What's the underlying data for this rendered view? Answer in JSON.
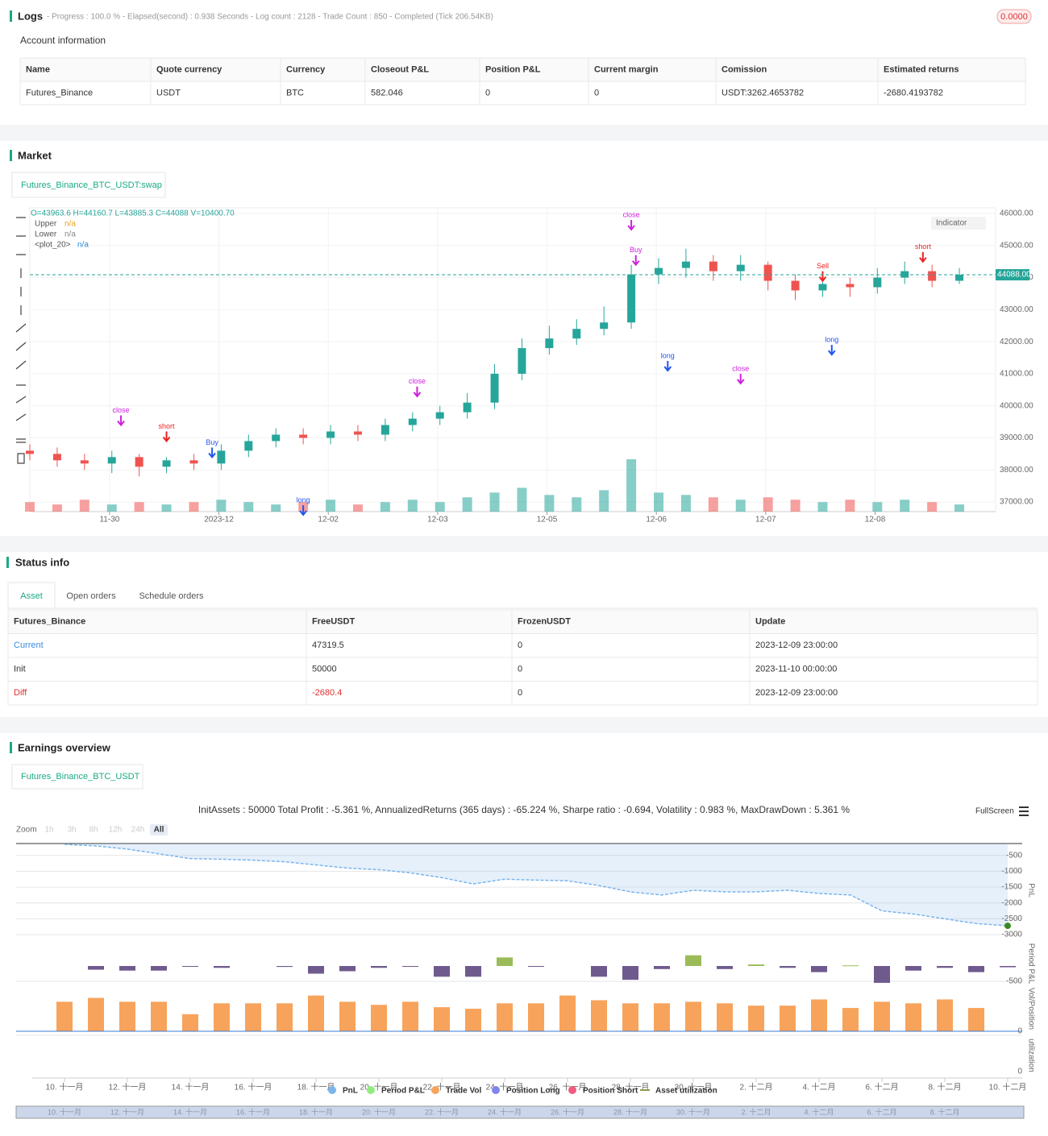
{
  "logs": {
    "title": "Logs",
    "progress": "- Progress : 100.0 % - Elapsed(second) : 0.938 Seconds - Log count : 2128 - Trade Count : 850 - Completed (Tick 206.54KB)",
    "badge": "0.0000"
  },
  "account": {
    "title": "Account information",
    "columns": [
      "Name",
      "Quote currency",
      "Currency",
      "Closeout P&L",
      "Position P&L",
      "Current margin",
      "Comission",
      "Estimated returns"
    ],
    "rows": [
      [
        "Futures_Binance",
        "USDT",
        "BTC",
        "582.046",
        "0",
        "0",
        "USDT:3262.4653782",
        "-2680.4193782"
      ]
    ]
  },
  "market": {
    "title": "Market",
    "tab": "Futures_Binance_BTC_USDT:swap",
    "ohlc": "O=43963.6 H=44160.7 L=43885.3 C=44088 V=10400.70",
    "indicators": [
      {
        "name": "Upper",
        "value": "n/a",
        "color": "#f0a020"
      },
      {
        "name": "Lower",
        "value": "n/a",
        "color": "#888888"
      },
      {
        "name": "<plot_20>",
        "value": "n/a",
        "color": "#2b8cd8"
      }
    ],
    "indicator_button": "Indicator",
    "last_price": {
      "value": 44088,
      "label": "44088.00"
    },
    "chart": {
      "type": "candlestick",
      "x": [
        0,
        6,
        12,
        18,
        24,
        30,
        36,
        42,
        48,
        54,
        60,
        66,
        72,
        78,
        84,
        90,
        96,
        102,
        108,
        114,
        120,
        126,
        132,
        138,
        144,
        150,
        156,
        162,
        168,
        174,
        180,
        186,
        192,
        198,
        204
      ],
      "open": [
        38600,
        38500,
        38300,
        38200,
        38400,
        38100,
        38300,
        38200,
        38600,
        38900,
        39100,
        39000,
        39200,
        39100,
        39400,
        39600,
        39800,
        40100,
        41000,
        41800,
        42100,
        42400,
        42600,
        44100,
        44300,
        44500,
        44200,
        44400,
        43900,
        43600,
        43800,
        43700,
        44000,
        44200,
        43900
      ],
      "high": [
        38800,
        38700,
        38500,
        38600,
        38500,
        38400,
        38500,
        38800,
        39100,
        39300,
        39300,
        39400,
        39400,
        39600,
        39800,
        40000,
        40400,
        41300,
        42100,
        42500,
        42700,
        43100,
        44400,
        44600,
        44900,
        44700,
        44700,
        44500,
        44100,
        44000,
        44000,
        44300,
        44500,
        44400,
        44300
      ],
      "low": [
        38300,
        38100,
        38000,
        37900,
        37800,
        37900,
        38000,
        38000,
        38400,
        38700,
        38800,
        38800,
        38900,
        38900,
        39200,
        39400,
        39600,
        39900,
        40800,
        41600,
        41900,
        42200,
        42400,
        43800,
        44000,
        43900,
        43900,
        43600,
        43300,
        43400,
        43400,
        43500,
        43800,
        43700,
        43800
      ],
      "close": [
        38500,
        38300,
        38200,
        38400,
        38100,
        38300,
        38200,
        38600,
        38900,
        39100,
        39000,
        39200,
        39100,
        39400,
        39600,
        39800,
        40100,
        41000,
        41800,
        42100,
        42400,
        42600,
        44100,
        44300,
        44500,
        44200,
        44400,
        43900,
        43600,
        43800,
        43700,
        44000,
        44200,
        43900,
        44088
      ],
      "volume": [
        4000,
        3000,
        5000,
        3000,
        4000,
        3000,
        4000,
        5000,
        4000,
        3000,
        4000,
        5000,
        3000,
        4000,
        5000,
        4000,
        6000,
        8000,
        10000,
        7000,
        6000,
        9000,
        22000,
        8000,
        7000,
        6000,
        5000,
        6000,
        5000,
        4000,
        5000,
        4000,
        5000,
        4000,
        3000
      ],
      "xlim": [
        0,
        207
      ],
      "xticks": [
        {
          "value": 17.5,
          "label": "11-30"
        },
        {
          "value": 41.5,
          "label": "2023-12"
        },
        {
          "value": 65.5,
          "label": "12-02"
        },
        {
          "value": 89.5,
          "label": "12-03"
        },
        {
          "value": 113.5,
          "label": "12-05"
        },
        {
          "value": 137.5,
          "label": "12-06"
        },
        {
          "value": 161.5,
          "label": "12-07"
        },
        {
          "value": 185.5,
          "label": "12-08"
        }
      ],
      "ylim": [
        36700,
        46175
      ],
      "yticks": [
        {
          "value": 37000,
          "label": "37000.00"
        },
        {
          "value": 38000,
          "label": "38000.00"
        },
        {
          "value": 39000,
          "label": "39000.00"
        },
        {
          "value": 40000,
          "label": "40000.00"
        },
        {
          "value": 41000,
          "label": "41000.00"
        },
        {
          "value": 42000,
          "label": "42000.00"
        },
        {
          "value": 43000,
          "label": "43000.00"
        },
        {
          "value": 44000,
          "label": "44000.00"
        },
        {
          "value": 45000,
          "label": "45000.00"
        },
        {
          "value": 46000,
          "label": "46000.00"
        }
      ],
      "up_color": "#26a69a",
      "down_color": "#ef5350",
      "signals": [
        {
          "label": "close",
          "x": 132,
          "price": 45900,
          "color": "#cc22dd"
        },
        {
          "label": "Buy",
          "x": 133,
          "price": 44800,
          "color": "#cc22dd"
        },
        {
          "label": "long",
          "x": 140,
          "price": 41500,
          "color": "#2255ee"
        },
        {
          "label": "Buy",
          "x": 40,
          "price": 38800,
          "color": "#2255ee"
        },
        {
          "label": "short",
          "x": 30,
          "price": 39300,
          "color": "#ee2222"
        },
        {
          "label": "Sell",
          "x": 174,
          "price": 44300,
          "color": "#ee2222"
        },
        {
          "label": "close",
          "x": 85,
          "price": 40700,
          "color": "#cc22dd"
        },
        {
          "label": "long",
          "x": 60,
          "price": 37000,
          "color": "#2255ee"
        },
        {
          "label": "close",
          "x": 20,
          "price": 39800,
          "color": "#cc22dd"
        },
        {
          "label": "short",
          "x": 196,
          "price": 44900,
          "color": "#ee2222"
        },
        {
          "label": "long",
          "x": 176,
          "price": 42000,
          "color": "#2255ee"
        },
        {
          "label": "close",
          "x": 156,
          "price": 41100,
          "color": "#cc22dd"
        }
      ]
    }
  },
  "status": {
    "title": "Status info",
    "tabs": [
      "Asset",
      "Open orders",
      "Schedule orders"
    ],
    "columns": [
      "Futures_Binance",
      "FreeUSDT",
      "FrozenUSDT",
      "Update"
    ],
    "rows": [
      [
        "Current",
        "47319.5",
        "0",
        "2023-12-09 23:00:00"
      ],
      [
        "Init",
        "50000",
        "0",
        "2023-11-10 00:00:00"
      ],
      [
        "Diff",
        "-2680.4",
        "0",
        "2023-12-09 23:00:00"
      ]
    ]
  },
  "earnings": {
    "title": "Earnings overview",
    "tab": "Futures_Binance_BTC_USDT",
    "summary": "InitAssets : 50000 Total Profit : -5.361 %, AnnualizedReturns (365 days) : -65.224 %, Sharpe ratio : -0.694, Volatility : 0.983 %, MaxDrawDown : 5.361 %",
    "zoom": "Zoom",
    "zoom_buttons": [
      "1h",
      "3h",
      "8h",
      "12h",
      "24h",
      "All"
    ],
    "fullscreen": "FullScreen",
    "categories": [
      "10. 十一月",
      null,
      "12. 十一月",
      null,
      "14. 十一月",
      null,
      "16. 十一月",
      null,
      "18. 十一月",
      null,
      "20. 十一月",
      null,
      "22. 十一月",
      null,
      "24. 十一月",
      null,
      "26. 十一月",
      null,
      "28. 十一月",
      null,
      "30. 十一月",
      null,
      "2. 十二月",
      null,
      "4. 十二月",
      null,
      "6. 十二月",
      null,
      "8. 十二月",
      null,
      "10. 十二月"
    ],
    "pnl": {
      "axis_title": "PnL",
      "color": "#7cb5ec",
      "ylim": [
        -3125,
        -125
      ],
      "yticks": [
        -500,
        -1000,
        -1500,
        -2000,
        -2500,
        -3000
      ],
      "values": [
        -150,
        -200,
        -300,
        -450,
        -600,
        -620,
        -650,
        -700,
        -800,
        -900,
        -950,
        -1050,
        -1200,
        -1400,
        -1250,
        -1280,
        -1300,
        -1450,
        -1650,
        -1750,
        -1600,
        -1650,
        -1650,
        -1600,
        -1700,
        -1750,
        -2250,
        -2350,
        -2500,
        -2650,
        -2720
      ]
    },
    "period": {
      "axis_title": "Period P&L",
      "positive_color": "#9bbb59",
      "negative_color": "#6f5a8e",
      "ylim": [
        -605,
        763
      ],
      "yticks": [
        -500
      ],
      "values": [
        null,
        -120,
        -150,
        -150,
        -10,
        -60,
        null,
        -30,
        -250,
        -170,
        -60,
        -20,
        -350,
        -350,
        280,
        -20,
        null,
        -350,
        -450,
        -100,
        350,
        -100,
        50,
        -60,
        -200,
        20,
        -550,
        -150,
        -60,
        -200,
        -40
      ]
    },
    "volume": {
      "axis_title": "Vol/Position",
      "color": "#f7a35c",
      "ylim": [
        0,
        55
      ],
      "yticks": [
        0
      ],
      "values": [
        38,
        43,
        38,
        38,
        22,
        36,
        36,
        36,
        46,
        38,
        34,
        38,
        31,
        29,
        36,
        36,
        46,
        40,
        36,
        36,
        38,
        36,
        33,
        33,
        41,
        30,
        38,
        36,
        41,
        30,
        null
      ]
    },
    "utilization": {
      "axis_title": "utilization",
      "yticks": [
        0
      ]
    },
    "legend": [
      {
        "name": "PnL",
        "color": "#7cb5ec"
      },
      {
        "name": "Period P&L",
        "color": "#90ed7d"
      },
      {
        "name": "Trade Vol",
        "color": "#f7a35c"
      },
      {
        "name": "Position Long",
        "color": "#8085e9"
      },
      {
        "name": "Position Short",
        "color": "#f15c80"
      },
      {
        "name": "Asset utilization",
        "color": "#8d9b4f"
      }
    ]
  }
}
